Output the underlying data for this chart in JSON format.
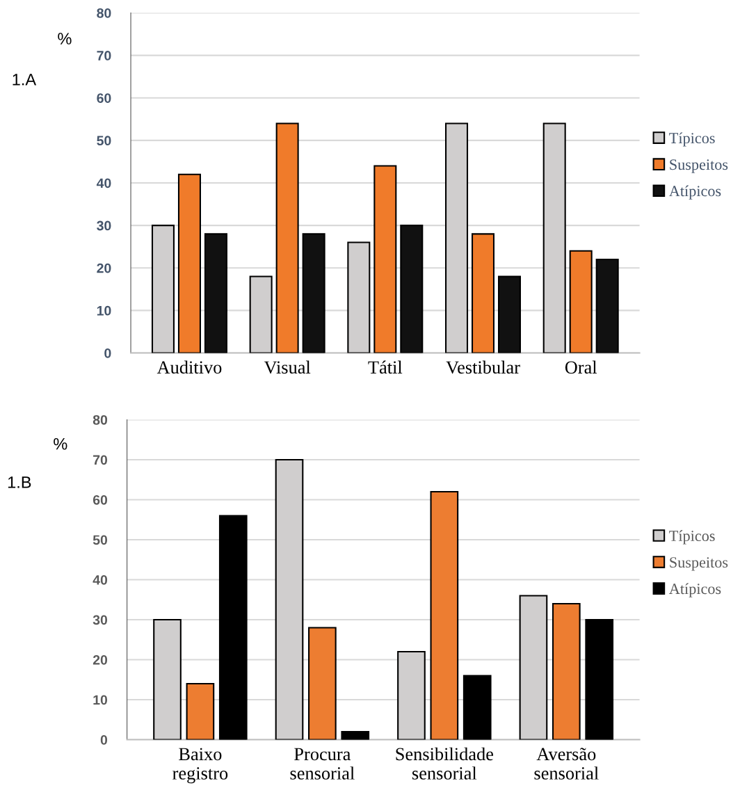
{
  "chart_data": [
    {
      "type": "bar",
      "title": "1.A",
      "ylabel": "%",
      "categories": [
        "Auditivo",
        "Visual",
        "Tátil",
        "Vestibular",
        "Oral"
      ],
      "series": [
        {
          "name": "Típicos",
          "color": "#d0cece",
          "values": [
            30,
            18,
            26,
            54,
            54
          ]
        },
        {
          "name": "Suspeitos",
          "color": "#f07b2a",
          "values": [
            42,
            54,
            44,
            28,
            24
          ]
        },
        {
          "name": "Atípicos",
          "color": "#111111",
          "values": [
            28,
            28,
            30,
            18,
            22
          ]
        }
      ],
      "ylim": [
        0,
        80
      ],
      "yticks": [
        0,
        10,
        20,
        30,
        40,
        50,
        60,
        70,
        80
      ],
      "grid": "y",
      "legend": "right"
    },
    {
      "type": "bar",
      "title": "1.B",
      "ylabel": "%",
      "categories": [
        "Baixo\nregistro",
        "Procura\nsensorial",
        "Sensibilidade\nsensorial",
        "Aversão\nsensorial"
      ],
      "series": [
        {
          "name": "Típicos",
          "color": "#d0cece",
          "values": [
            30,
            70,
            22,
            36
          ]
        },
        {
          "name": "Suspeitos",
          "color": "#ed7d31",
          "values": [
            14,
            28,
            62,
            34
          ]
        },
        {
          "name": "Atípicos",
          "color": "#000000",
          "values": [
            56,
            2,
            16,
            30
          ]
        }
      ],
      "ylim": [
        0,
        80
      ],
      "yticks": [
        0,
        10,
        20,
        30,
        40,
        50,
        60,
        70,
        80
      ],
      "grid": "y",
      "legend": "right"
    }
  ]
}
